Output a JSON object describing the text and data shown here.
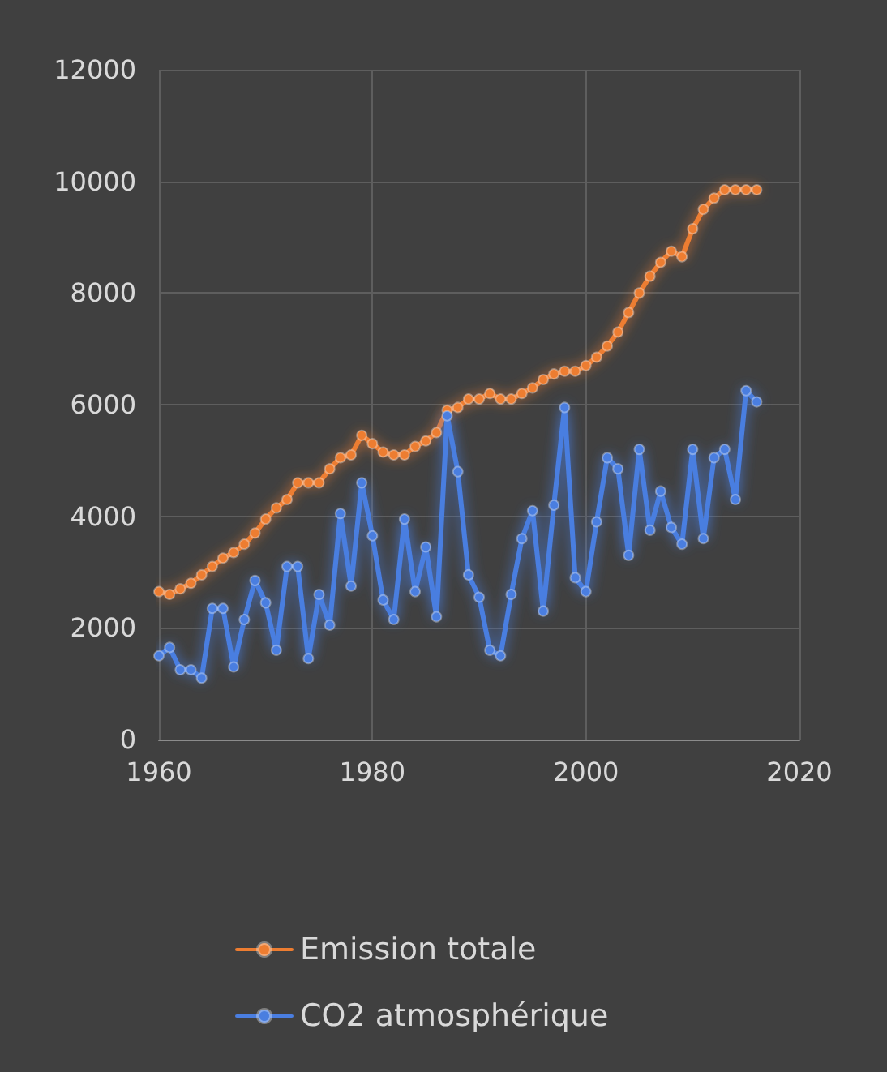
{
  "chart_data": {
    "type": "line",
    "x": [
      1960,
      1961,
      1962,
      1963,
      1964,
      1965,
      1966,
      1967,
      1968,
      1969,
      1970,
      1971,
      1972,
      1973,
      1974,
      1975,
      1976,
      1977,
      1978,
      1979,
      1980,
      1981,
      1982,
      1983,
      1984,
      1985,
      1986,
      1987,
      1988,
      1989,
      1990,
      1991,
      1992,
      1993,
      1994,
      1995,
      1996,
      1997,
      1998,
      1999,
      2000,
      2001,
      2002,
      2003,
      2004,
      2005,
      2006,
      2007,
      2008,
      2009,
      2010,
      2011,
      2012,
      2013,
      2014,
      2015,
      2016
    ],
    "series": [
      {
        "name": "Emission totale",
        "color": "#ed7d31",
        "values": [
          2650,
          2600,
          2700,
          2800,
          2950,
          3100,
          3250,
          3350,
          3500,
          3700,
          3950,
          4150,
          4300,
          4600,
          4600,
          4600,
          4850,
          5050,
          5100,
          5450,
          5300,
          5150,
          5100,
          5100,
          5250,
          5350,
          5500,
          5900,
          5950,
          6100,
          6100,
          6200,
          6100,
          6100,
          6200,
          6300,
          6450,
          6550,
          6600,
          6600,
          6700,
          6850,
          7050,
          7300,
          7650,
          8000,
          8300,
          8550,
          8750,
          8650,
          9150,
          9500,
          9700,
          9850,
          9850,
          9850,
          9850
        ]
      },
      {
        "name": "CO2 atmosphérique",
        "color": "#4a7ee0",
        "values": [
          1500,
          1650,
          1250,
          1250,
          1100,
          2350,
          2350,
          1300,
          2150,
          2850,
          2450,
          1600,
          3100,
          3100,
          1450,
          2600,
          2050,
          4050,
          2750,
          4600,
          3650,
          2500,
          2150,
          3950,
          2650,
          3450,
          2200,
          5800,
          4800,
          2950,
          2550,
          1600,
          1500,
          2600,
          3600,
          4100,
          2300,
          4200,
          5950,
          2900,
          2650,
          3900,
          5050,
          4850,
          3300,
          5200,
          3750,
          4450,
          3800,
          3500,
          5200,
          3600,
          5050,
          5200,
          4300,
          6250,
          6050
        ]
      }
    ],
    "xlim": [
      1960,
      2020
    ],
    "xticks": [
      1960,
      1980,
      2000,
      2020
    ],
    "ylim": [
      0,
      12000
    ],
    "yticks": [
      0,
      2000,
      4000,
      6000,
      8000,
      10000,
      12000
    ],
    "grid": true,
    "legend": "bottom",
    "marker": "circle",
    "line_style": "solid"
  }
}
